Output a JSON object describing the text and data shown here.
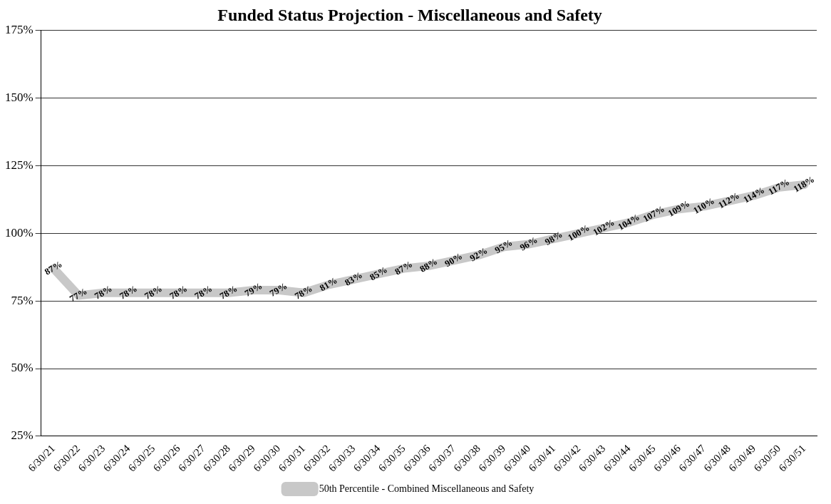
{
  "chart_data": {
    "type": "line",
    "title": "Funded Status Projection - Miscellaneous and Safety",
    "categories": [
      "6/30/21",
      "6/30/22",
      "6/30/23",
      "6/30/24",
      "6/30/25",
      "6/30/26",
      "6/30/27",
      "6/30/28",
      "6/30/29",
      "6/30/30",
      "6/30/31",
      "6/30/32",
      "6/30/33",
      "6/30/34",
      "6/30/35",
      "6/30/36",
      "6/30/37",
      "6/30/38",
      "6/30/39",
      "6/30/40",
      "6/30/41",
      "6/30/42",
      "6/30/43",
      "6/30/44",
      "6/30/45",
      "6/30/46",
      "6/30/47",
      "6/30/48",
      "6/30/49",
      "6/30/50",
      "6/30/51"
    ],
    "series": [
      {
        "name": "50th Percentile - Combined Miscellaneous and Safety",
        "color": "#c8c8c8",
        "values": [
          87,
          77,
          78,
          78,
          78,
          78,
          78,
          78,
          79,
          79,
          78,
          81,
          83,
          85,
          87,
          88,
          90,
          92,
          95,
          96,
          98,
          100,
          102,
          104,
          107,
          109,
          110,
          112,
          114,
          117,
          118
        ],
        "value_labels": [
          "87%",
          "77%",
          "78%",
          "78%",
          "78%",
          "78%",
          "78%",
          "78%",
          "79%",
          "79%",
          "78%",
          "81%",
          "83%",
          "85%",
          "87%",
          "88%",
          "90%",
          "92%",
          "95%",
          "96%",
          "98%",
          "100%",
          "102%",
          "104%",
          "107%",
          "109%",
          "110%",
          "112%",
          "114%",
          "117%",
          "118%"
        ]
      }
    ],
    "ylim": [
      25,
      175
    ],
    "yticks": [
      {
        "value": 25,
        "label": "25%"
      },
      {
        "value": 50,
        "label": "50%"
      },
      {
        "value": 75,
        "label": "75%"
      },
      {
        "value": 100,
        "label": "100%"
      },
      {
        "value": 125,
        "label": "125%"
      },
      {
        "value": 150,
        "label": "150%"
      },
      {
        "value": 175,
        "label": "175%"
      }
    ],
    "grid": "y",
    "legend": "bottom",
    "marker": "none",
    "line_style": "solid"
  }
}
